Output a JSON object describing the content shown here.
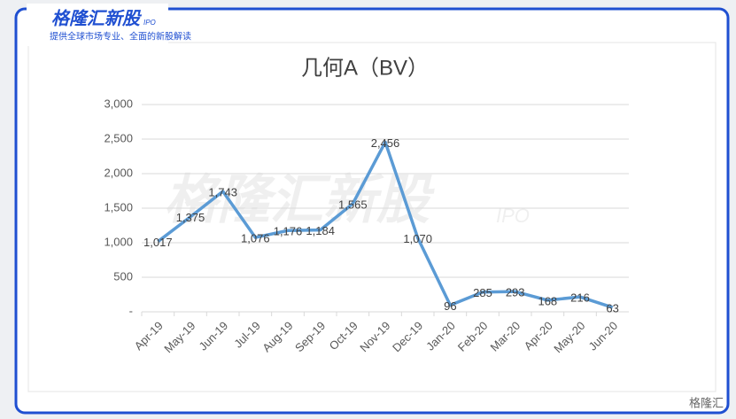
{
  "header": {
    "logo": "格隆汇新股",
    "logo_tag": "IPO",
    "tagline": "提供全球市场专业、全面的新股解读",
    "watermark": "格隆汇新股",
    "watermark_tag": "IPO",
    "corner_brand": "格隆汇"
  },
  "chart_data": {
    "type": "line",
    "title": "几何A（BV）",
    "categories": [
      "Apr-19",
      "May-19",
      "Jun-19",
      "Jul-19",
      "Aug-19",
      "Sep-19",
      "Oct-19",
      "Nov-19",
      "Dec-19",
      "Jan-20",
      "Feb-20",
      "Mar-20",
      "Apr-20",
      "May-20",
      "Jun-20"
    ],
    "values": [
      1017,
      1375,
      1743,
      1076,
      1176,
      1184,
      1565,
      2456,
      1070,
      96,
      285,
      293,
      168,
      216,
      63
    ],
    "value_labels": [
      "1,017",
      "1,375",
      "1,743",
      "1,076",
      "1,176",
      "1,184",
      "1,565",
      "2,456",
      "1,070",
      "96",
      "285",
      "293",
      "168",
      "216",
      "63"
    ],
    "color": "#5b9bd5",
    "ylim": [
      0,
      3000
    ],
    "yticks": [
      {
        "value": 0,
        "label": "-"
      },
      500,
      {
        "value": 1000,
        "label": "1,000"
      },
      {
        "value": 1500,
        "label": "1,500"
      },
      {
        "value": 2000,
        "label": "2,000"
      },
      {
        "value": 2500,
        "label": "2,500"
      },
      {
        "value": 3000,
        "label": "3,000"
      }
    ],
    "grid": true
  }
}
